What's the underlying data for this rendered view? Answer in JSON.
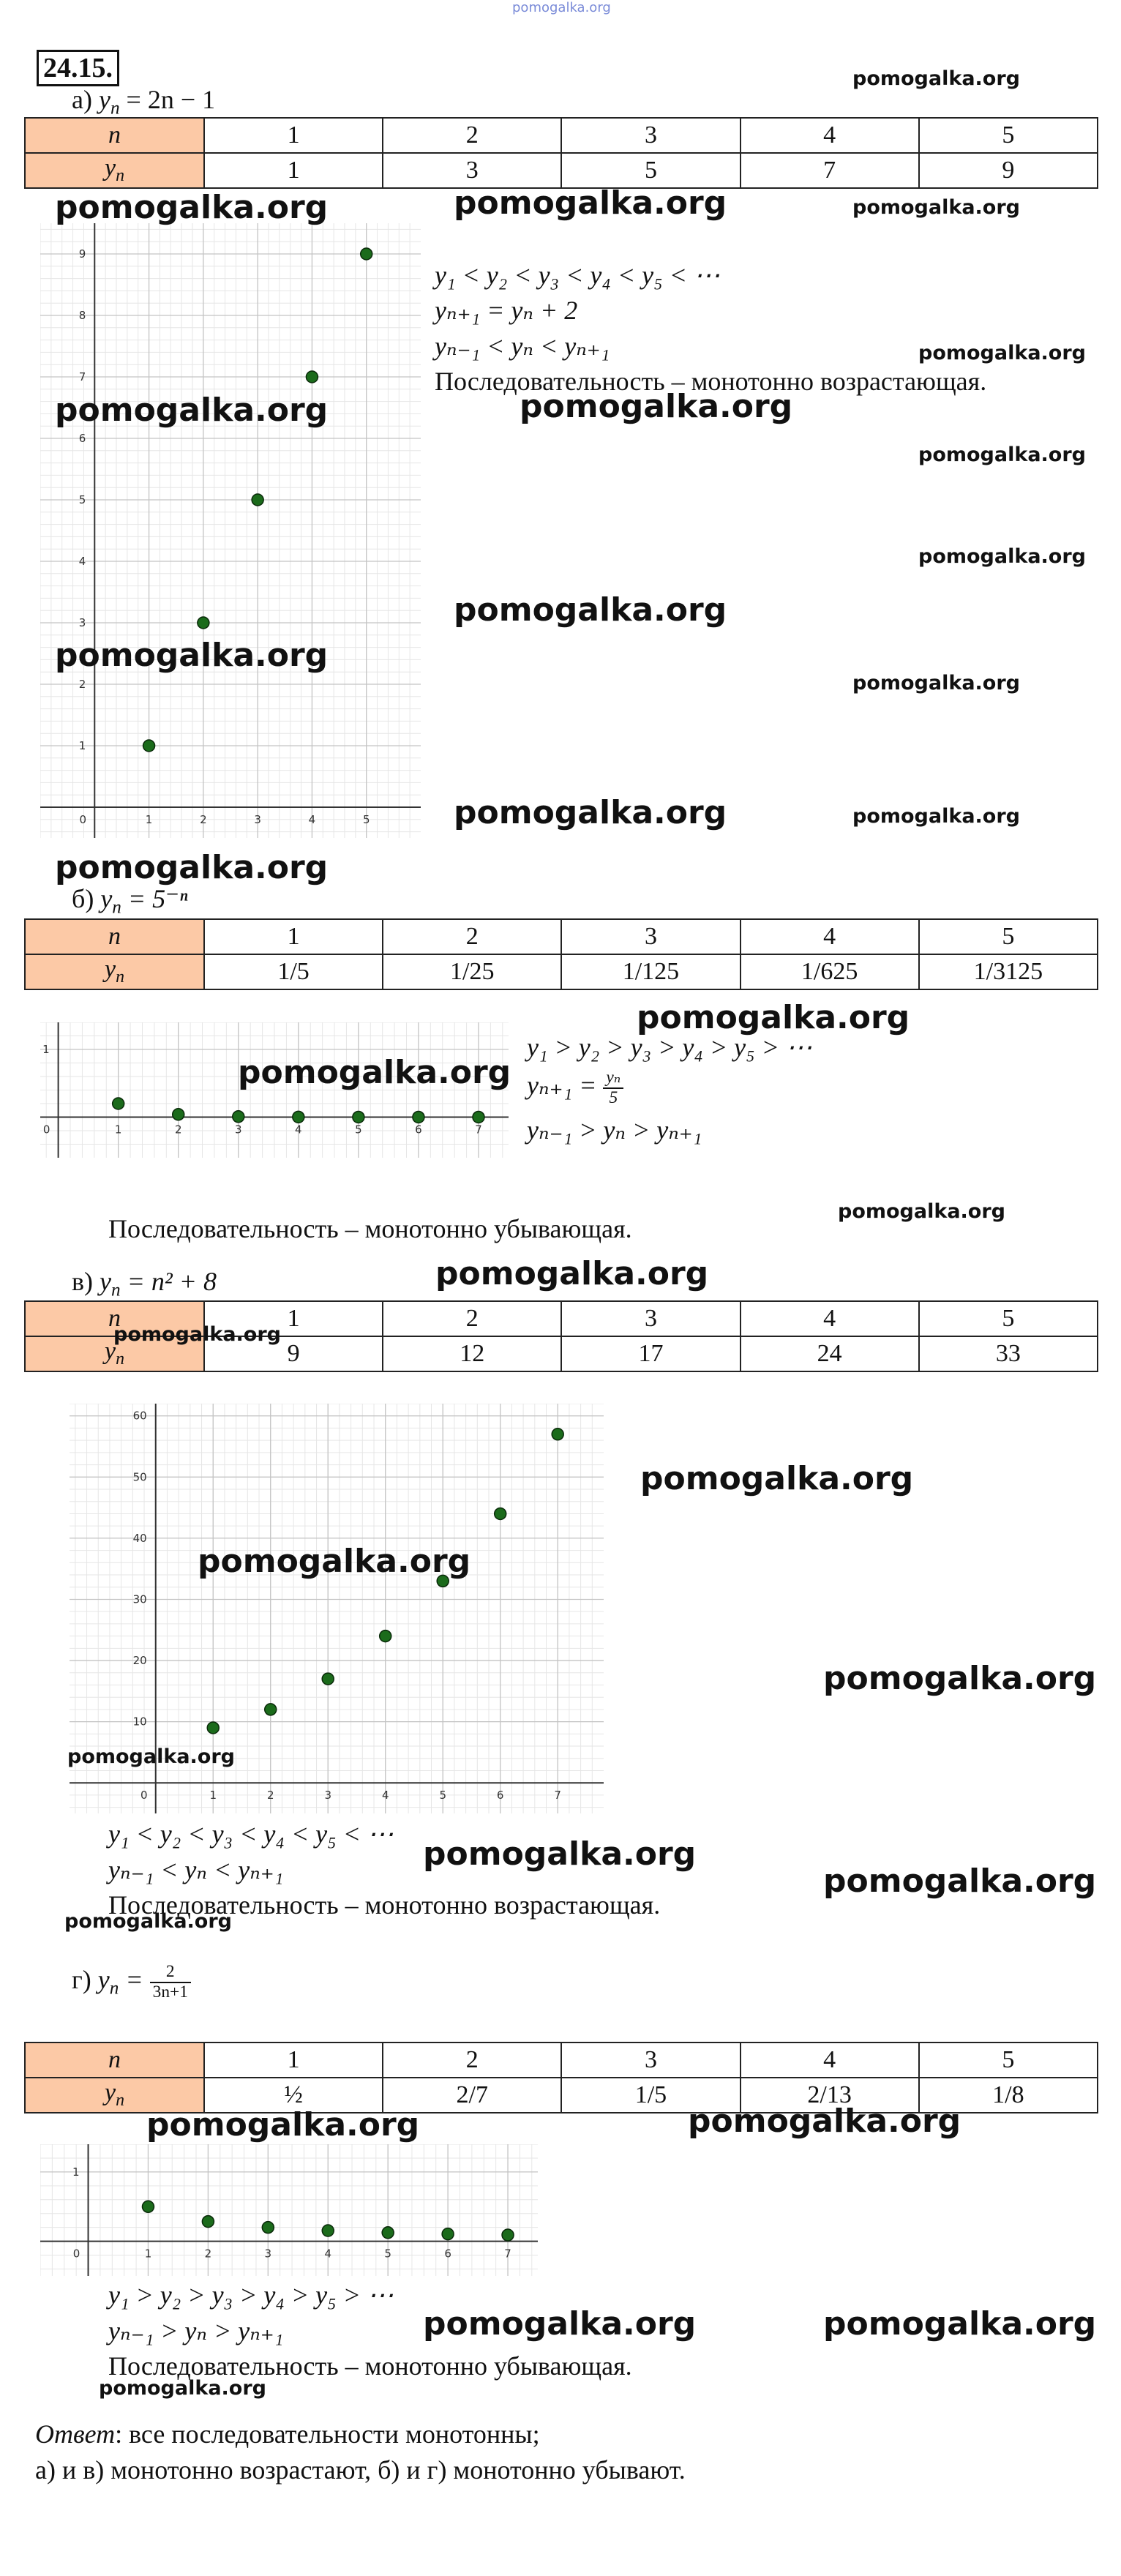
{
  "watermark": "pomogalka.org",
  "problem": {
    "number": "24.15."
  },
  "answer": {
    "label": "Ответ",
    "line1": ": все последовательности монотонны;",
    "line2": "а) и в) монотонно возрастают, б) и г) монотонно убывают."
  },
  "parts": {
    "a": {
      "label": "а)",
      "formula": "= 2n − 1",
      "table": {
        "row1_header": "n",
        "row2_header": "y",
        "n": [
          "1",
          "2",
          "3",
          "4",
          "5"
        ],
        "y": [
          "1",
          "3",
          "5",
          "7",
          "9"
        ]
      },
      "lines": [
        "y₁ < y₂ < y₃ < y₄ < y₅ < ⋯",
        "yₙ₊₁ = yₙ + 2",
        "yₙ₋₁ < yₙ < yₙ₊₁"
      ],
      "conclusion": "Последовательность – монотонно возрастающая."
    },
    "b": {
      "label": "б)",
      "formula": "= 5⁻ⁿ",
      "table": {
        "row1_header": "n",
        "row2_header": "y",
        "n": [
          "1",
          "2",
          "3",
          "4",
          "5"
        ],
        "y": [
          "1/5",
          "1/25",
          "1/125",
          "1/625",
          "1/3125"
        ]
      },
      "lines": [
        "y₁ > y₂ > y₃ > y₄ > y₅ > ⋯",
        "yₙ₊₁ =",
        "yₙ₋₁ > yₙ > yₙ₊₁"
      ],
      "frac_num": "yₙ",
      "frac_den": "5",
      "conclusion": "Последовательность – монотонно убывающая."
    },
    "c": {
      "label": "в)",
      "formula": "= n² + 8",
      "table": {
        "row1_header": "n",
        "row2_header": "y",
        "n": [
          "1",
          "2",
          "3",
          "4",
          "5"
        ],
        "y": [
          "9",
          "12",
          "17",
          "24",
          "33"
        ]
      },
      "lines": [
        "y₁ < y₂ < y₃ < y₄ < y₅ < ⋯",
        "yₙ₋₁ < yₙ < yₙ₊₁"
      ],
      "conclusion": "Последовательность – монотонно возрастающая."
    },
    "d": {
      "label": "г)",
      "formula": "=",
      "frac_num": "2",
      "frac_den": "3n+1",
      "table": {
        "row1_header": "n",
        "row2_header": "y",
        "n": [
          "1",
          "2",
          "3",
          "4",
          "5"
        ],
        "y": [
          "½",
          "2/7",
          "1/5",
          "2/13",
          "1/8"
        ]
      },
      "lines": [
        "y₁ > y₂ > y₃ > y₄ > y₅ > ⋯",
        "yₙ₋₁ > yₙ > yₙ₊₁"
      ],
      "conclusion": "Последовательность – монотонно убывающая."
    }
  },
  "chart_data": [
    {
      "type": "scatter",
      "x": [
        1,
        2,
        3,
        4,
        5
      ],
      "y": [
        1,
        3,
        5,
        7,
        9
      ],
      "xlim": [
        -1,
        6
      ],
      "ylim": [
        -0.5,
        9.5
      ],
      "xticks": [
        0,
        1,
        2,
        3,
        4,
        5
      ],
      "yticks": [
        1,
        2,
        3,
        4,
        5,
        6,
        7,
        8,
        9
      ],
      "grid": true,
      "point_color": "#1b6b1b"
    },
    {
      "type": "scatter",
      "x": [
        1,
        2,
        3,
        4,
        5,
        6,
        7
      ],
      "y": [
        0.2,
        0.04,
        0.008,
        0.0016,
        0.00032,
        6.4e-05,
        1.28e-05
      ],
      "xlim": [
        -0.3,
        7.5
      ],
      "ylim": [
        -0.6,
        1.4
      ],
      "xticks": [
        0,
        1,
        2,
        3,
        4,
        5,
        6,
        7
      ],
      "yticks": [
        1
      ],
      "grid": true,
      "point_color": "#1b6b1b"
    },
    {
      "type": "scatter",
      "x": [
        1,
        2,
        3,
        4,
        5,
        6,
        7
      ],
      "y": [
        9,
        12,
        17,
        24,
        33,
        44,
        57
      ],
      "xlim": [
        -1.5,
        7.8
      ],
      "ylim": [
        -5,
        62
      ],
      "xticks": [
        0,
        1,
        2,
        3,
        4,
        5,
        6,
        7
      ],
      "yticks": [
        10,
        20,
        30,
        40,
        50,
        60
      ],
      "grid": true,
      "point_color": "#1b6b1b"
    },
    {
      "type": "scatter",
      "x": [
        1,
        2,
        3,
        4,
        5,
        6,
        7
      ],
      "y": [
        0.5,
        0.2857,
        0.2,
        0.1538,
        0.125,
        0.1053,
        0.0909
      ],
      "xlim": [
        -0.8,
        7.5
      ],
      "ylim": [
        -0.5,
        1.4
      ],
      "xticks": [
        0,
        1,
        2,
        3,
        4,
        5,
        6,
        7
      ],
      "yticks": [
        1
      ],
      "grid": true,
      "point_color": "#1b6b1b"
    }
  ]
}
